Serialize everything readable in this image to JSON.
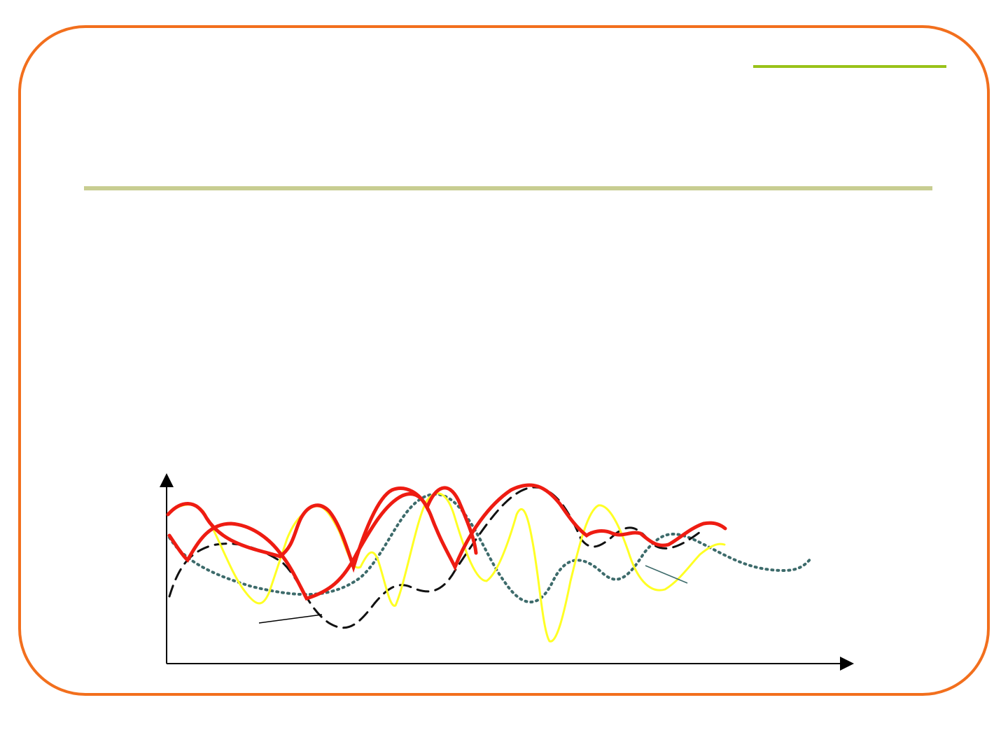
{
  "slide": {
    "frame_color": "#f26f1d",
    "accent_line_color": "#99c21a",
    "title_rule_color": "#c8cd91"
  },
  "diagram": {
    "axes_color": "#000000",
    "series": [
      {
        "id": "dotted-teal",
        "color": "#3d6b6b",
        "style": "dotted"
      },
      {
        "id": "dashed-black",
        "color": "#111111",
        "style": "dashed"
      },
      {
        "id": "thin-yellow",
        "color": "#ffff24",
        "style": "solid"
      },
      {
        "id": "thick-red",
        "color": "#ee1c12",
        "style": "solid"
      }
    ],
    "callouts": [
      {
        "id": "callout-left",
        "color": "#000000"
      },
      {
        "id": "callout-right",
        "color": "#3d6b6b"
      }
    ]
  }
}
